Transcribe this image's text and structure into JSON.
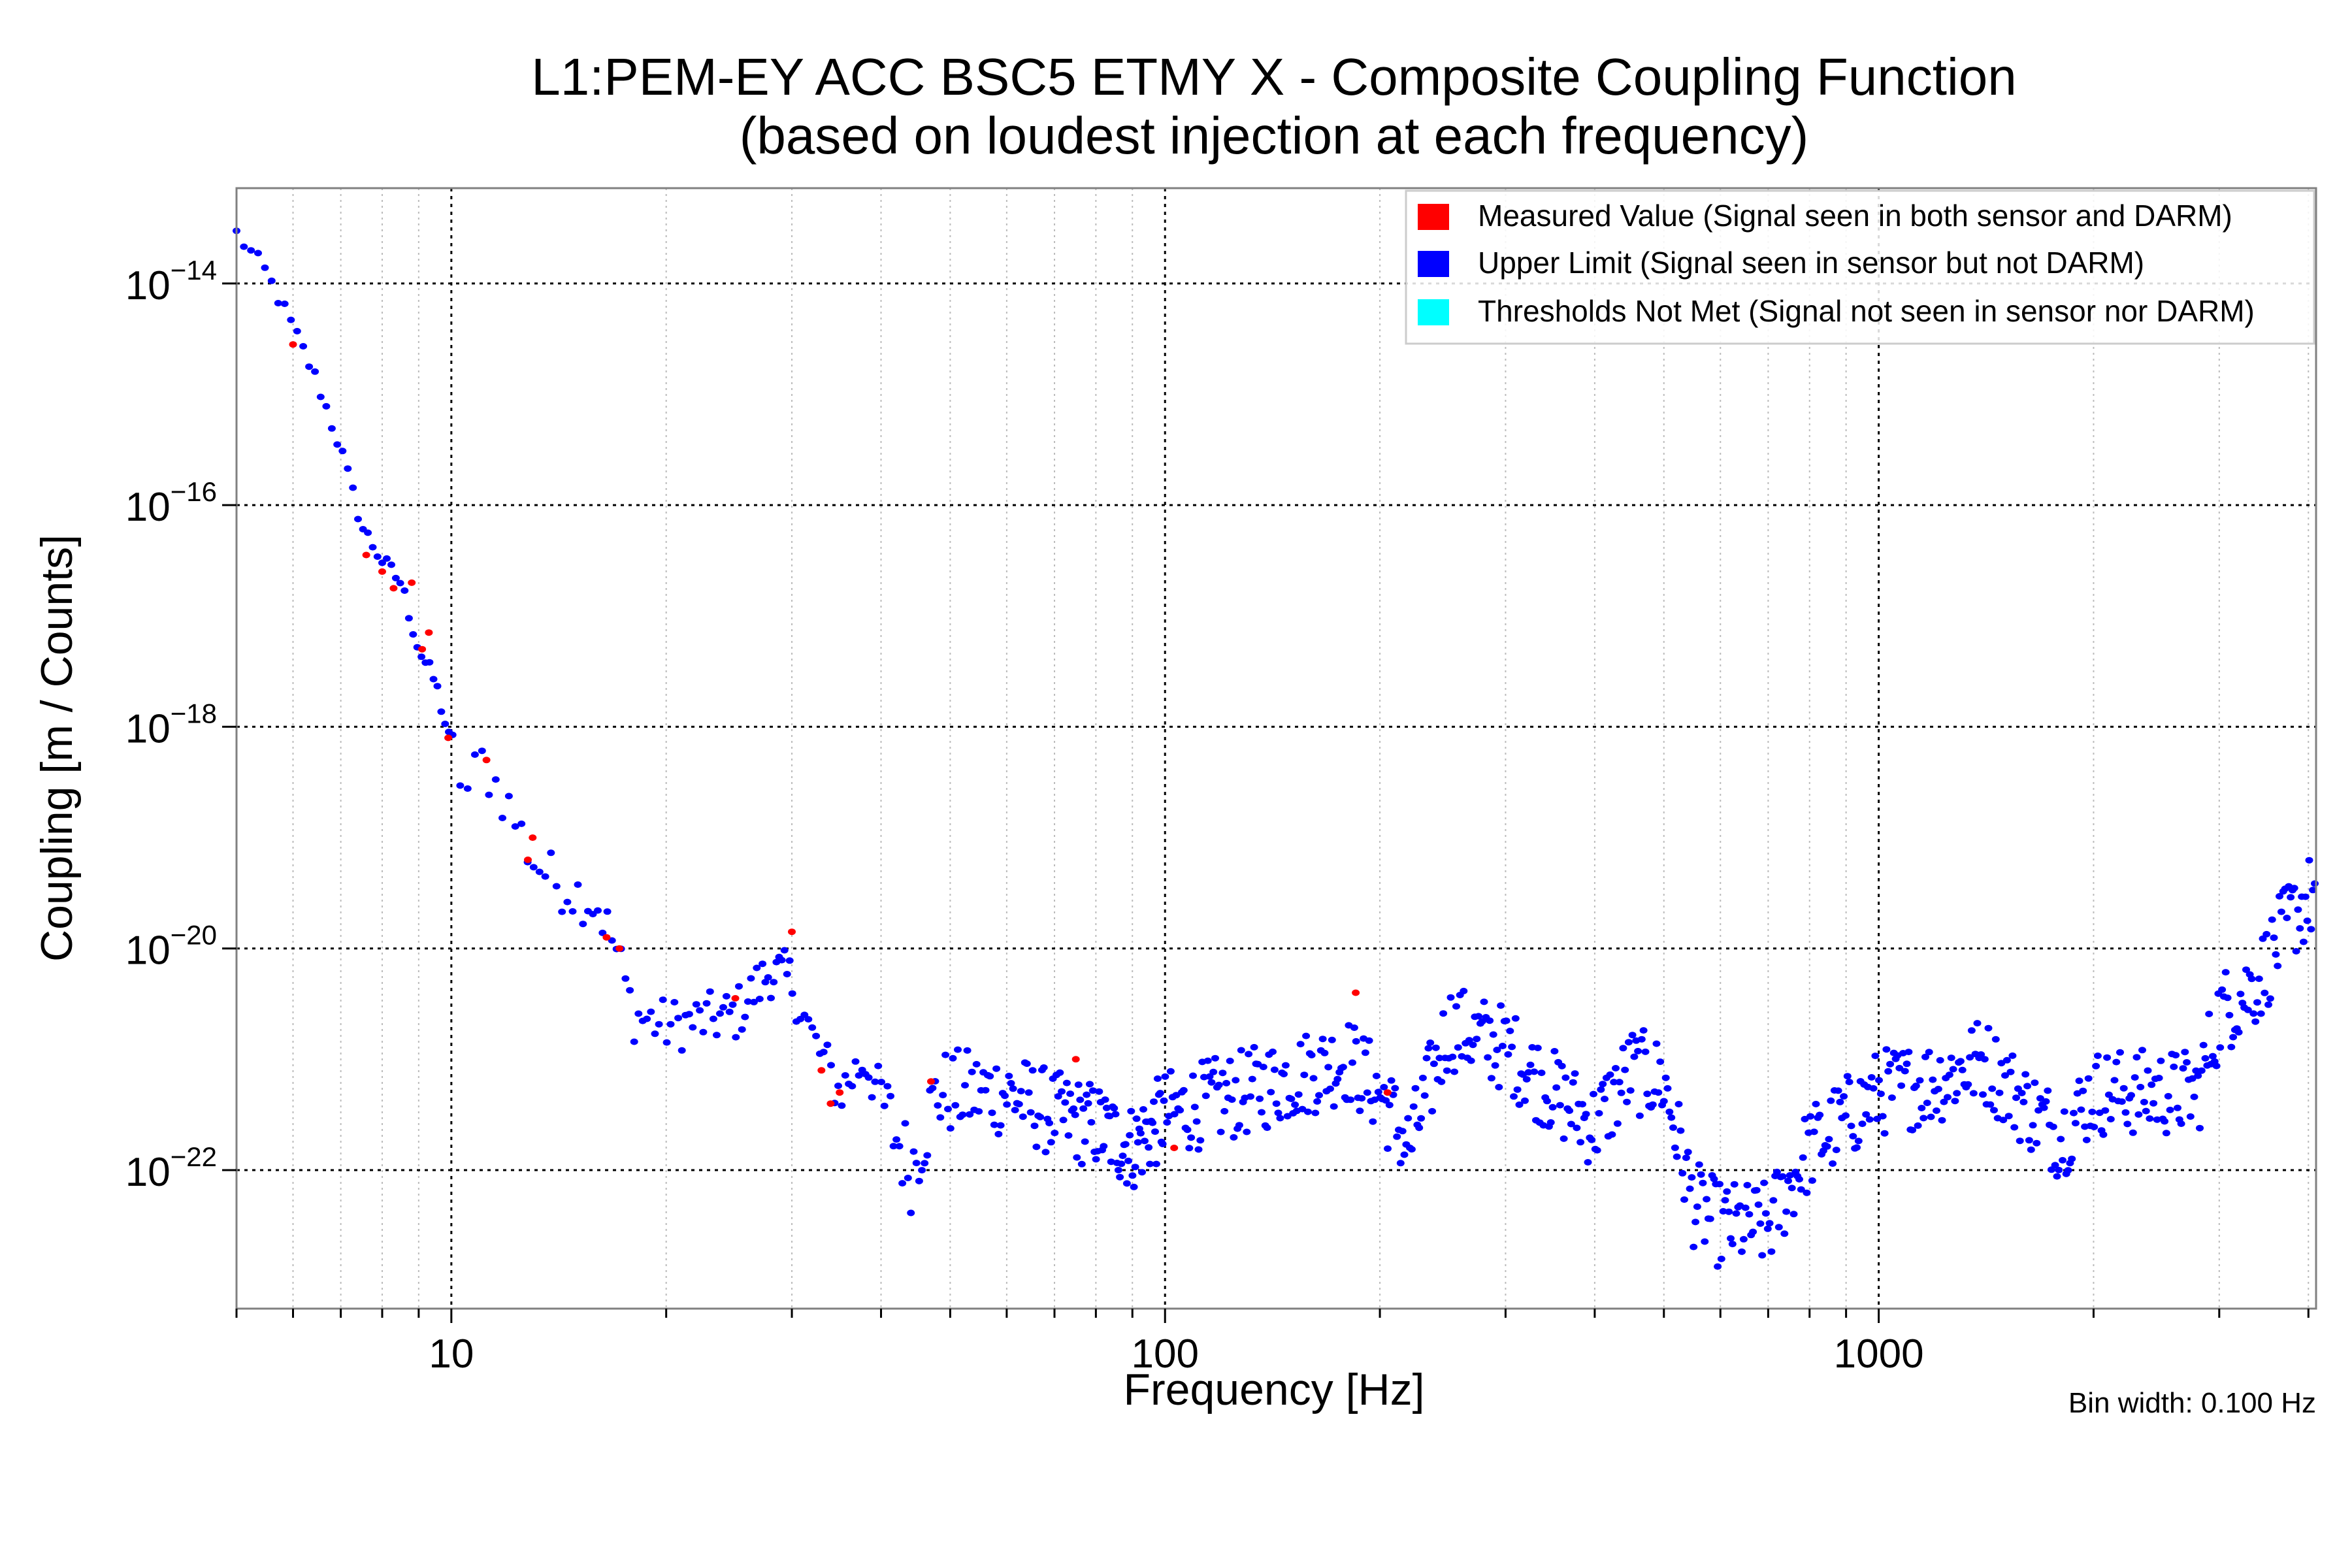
{
  "chart_data": {
    "type": "scatter",
    "title": "L1:PEM-EY ACC BSC5 ETMY X - Composite Coupling Function",
    "subtitle": "(based on loudest injection at each frequency)",
    "xlabel": "Frequency [Hz]",
    "ylabel": "Coupling [m / Counts]",
    "xscale": "log",
    "yscale": "log",
    "xlim": [
      5,
      4100
    ],
    "ylim_log10": [
      -23.25,
      -13.14
    ],
    "x_ticks": [
      {
        "value": 10,
        "label": "10"
      },
      {
        "value": 100,
        "label": "100"
      },
      {
        "value": 1000,
        "label": "1000"
      }
    ],
    "y_ticks": [
      {
        "exp": -14,
        "base": "10",
        "sup": "−14"
      },
      {
        "exp": -16,
        "base": "10",
        "sup": "−16"
      },
      {
        "exp": -18,
        "base": "10",
        "sup": "−18"
      },
      {
        "exp": -20,
        "base": "10",
        "sup": "−20"
      },
      {
        "exp": -22,
        "base": "10",
        "sup": "−22"
      }
    ],
    "grid": true,
    "legend_position": "top-right",
    "legend": [
      {
        "label": "Measured Value (Signal seen in both sensor and DARM)",
        "color": "#ff0000"
      },
      {
        "label": "Upper Limit (Signal seen in sensor but not DARM)",
        "color": "#0000ff"
      },
      {
        "label": "Thresholds Not Met (Signal not seen in sensor nor DARM)",
        "color": "#00ffff"
      }
    ],
    "annotation": "Bin width: 0.100 Hz",
    "series": [
      {
        "name": "Upper Limit (Signal seen in sensor but not DARM)",
        "color": "#0000ff",
        "trend_log10": [
          [
            5.0,
            -13.55
          ],
          [
            5.5,
            -13.9
          ],
          [
            6.0,
            -14.4
          ],
          [
            6.5,
            -14.9
          ],
          [
            7.0,
            -15.5
          ],
          [
            7.5,
            -16.2
          ],
          [
            8.0,
            -16.5
          ],
          [
            8.5,
            -16.7
          ],
          [
            9.0,
            -17.3
          ],
          [
            9.5,
            -17.6
          ],
          [
            10.0,
            -18.2
          ],
          [
            10.5,
            -18.6
          ],
          [
            11.0,
            -18.3
          ],
          [
            12.0,
            -18.7
          ],
          [
            13.0,
            -19.2
          ],
          [
            14.0,
            -19.4
          ],
          [
            16.0,
            -19.6
          ],
          [
            17.0,
            -20.0
          ],
          [
            18.0,
            -20.6
          ],
          [
            20.0,
            -20.7
          ],
          [
            25.0,
            -20.6
          ],
          [
            28.0,
            -20.2
          ],
          [
            30.0,
            -20.3
          ],
          [
            32.0,
            -20.8
          ],
          [
            35.0,
            -21.3
          ],
          [
            38.0,
            -21.0
          ],
          [
            42.0,
            -21.7
          ],
          [
            44.0,
            -22.0
          ],
          [
            48.0,
            -21.3
          ],
          [
            60.0,
            -21.3
          ],
          [
            70.0,
            -21.5
          ],
          [
            80.0,
            -21.6
          ],
          [
            90.0,
            -21.8
          ],
          [
            100.0,
            -21.5
          ],
          [
            130.0,
            -21.3
          ],
          [
            180.0,
            -21.0
          ],
          [
            200.0,
            -21.3
          ],
          [
            220.0,
            -21.8
          ],
          [
            250.0,
            -20.7
          ],
          [
            300.0,
            -20.9
          ],
          [
            350.0,
            -21.3
          ],
          [
            400.0,
            -21.6
          ],
          [
            450.0,
            -21.1
          ],
          [
            500.0,
            -21.2
          ],
          [
            550.0,
            -22.3
          ],
          [
            600.0,
            -22.5
          ],
          [
            700.0,
            -22.5
          ],
          [
            800.0,
            -21.8
          ],
          [
            1000.0,
            -21.3
          ],
          [
            1200.0,
            -21.2
          ],
          [
            1400.0,
            -21.0
          ],
          [
            1600.0,
            -21.4
          ],
          [
            1800.0,
            -21.7
          ],
          [
            2000.0,
            -21.3
          ],
          [
            2500.0,
            -21.3
          ],
          [
            2800.0,
            -21.3
          ],
          [
            3000.0,
            -20.6
          ],
          [
            3400.0,
            -20.3
          ],
          [
            3800.0,
            -19.7
          ],
          [
            4100.0,
            -19.5
          ]
        ]
      },
      {
        "name": "Measured Value (Signal seen in both sensor and DARM)",
        "color": "#ff0000",
        "points_log10": [
          [
            6.0,
            -14.55
          ],
          [
            7.6,
            -16.45
          ],
          [
            8.0,
            -16.6
          ],
          [
            8.3,
            -16.75
          ],
          [
            8.8,
            -16.7
          ],
          [
            9.1,
            -17.3
          ],
          [
            9.3,
            -17.15
          ],
          [
            9.9,
            -18.1
          ],
          [
            11.2,
            -18.3
          ],
          [
            12.8,
            -19.2
          ],
          [
            13.0,
            -19.0
          ],
          [
            16.5,
            -19.9
          ],
          [
            17.2,
            -20.0
          ],
          [
            25.0,
            -20.45
          ],
          [
            30.0,
            -19.85
          ],
          [
            33.0,
            -21.1
          ],
          [
            34.0,
            -21.4
          ],
          [
            35.0,
            -21.3
          ],
          [
            47.0,
            -21.2
          ],
          [
            75.0,
            -21.0
          ],
          [
            103.0,
            -21.8
          ],
          [
            185.0,
            -20.4
          ],
          [
            205.0,
            -21.3
          ]
        ]
      },
      {
        "name": "Thresholds Not Met (Signal not seen in sensor nor DARM)",
        "color": "#00ffff",
        "points_log10": []
      }
    ]
  }
}
